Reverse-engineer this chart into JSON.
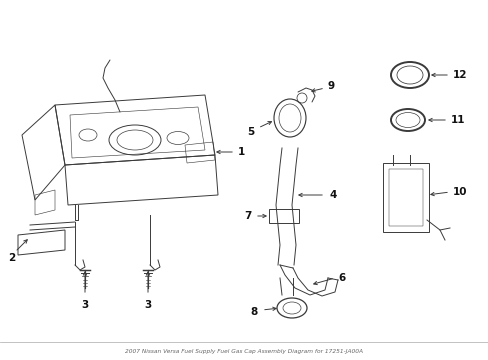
{
  "title": "2007 Nissan Versa Fuel Supply Fuel Gas Cap Assembly Diagram for 17251-JA00A",
  "bg_color": "#ffffff",
  "line_color": "#3a3a3a",
  "label_color": "#111111",
  "fig_w": 4.89,
  "fig_h": 3.6,
  "dpi": 100
}
